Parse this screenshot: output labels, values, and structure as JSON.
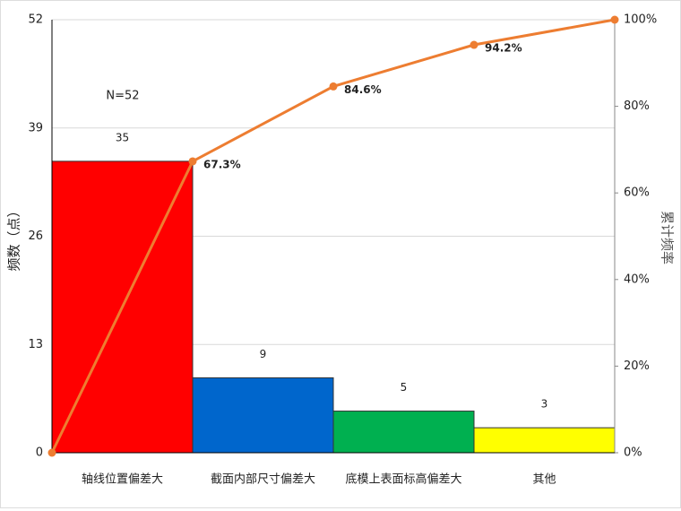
{
  "chart_data": {
    "type": "pareto",
    "annotation": "N=52",
    "y_label": "频数（点）",
    "y2_label": "累计频率",
    "categories": [
      "轴线位置偏差大",
      "截面内部尺寸偏差大",
      "底模上表面标高偏差大",
      "其他"
    ],
    "series": [
      {
        "values": [
          35,
          9,
          5,
          3
        ],
        "colors": [
          "#ff0000",
          "#0066cc",
          "#00b050",
          "#ffff00"
        ]
      },
      {
        "axis": "y2",
        "color": "#ed7d31",
        "x": [
          0,
          1,
          2,
          3,
          4
        ],
        "values": [
          0,
          67.3,
          84.6,
          94.2,
          100
        ],
        "value_labels": [
          null,
          "67.3%",
          "84.6%",
          "94.2%",
          null
        ]
      }
    ],
    "ylim": [
      0,
      52
    ],
    "yticks": [
      0,
      13,
      26,
      39,
      52
    ],
    "y2lim": [
      0,
      100
    ],
    "y2ticks": [
      {
        "value": 0,
        "label": "0%"
      },
      {
        "value": 20,
        "label": "20%"
      },
      {
        "value": 40,
        "label": "40%"
      },
      {
        "value": 60,
        "label": "60%"
      },
      {
        "value": 80,
        "label": "80%"
      },
      {
        "value": 100,
        "label": "100%"
      }
    ],
    "grid": true
  }
}
